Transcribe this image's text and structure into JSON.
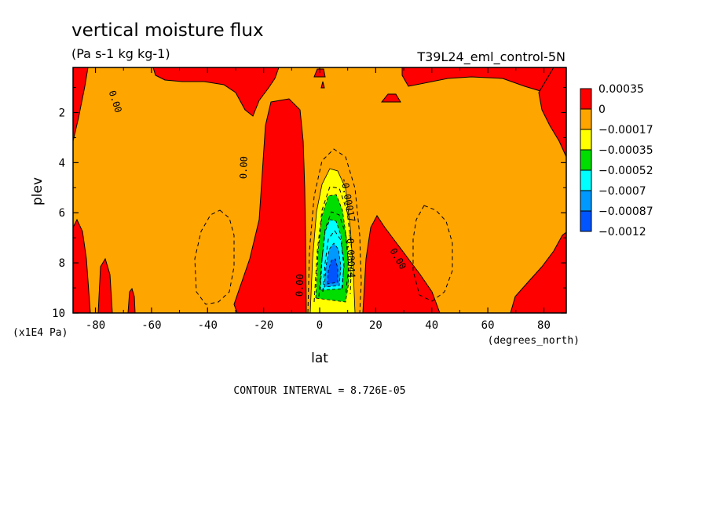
{
  "chart_data": {
    "type": "heatmap",
    "title": "vertical moisture flux",
    "units": "(Pa s-1 kg kg-1)",
    "dataset": "T39L24_eml_control-5N",
    "xlabel": "lat",
    "xunits": "(degrees_north)",
    "ylabel": "plev",
    "yunits": "(x1E4 Pa)",
    "xlim": [
      -88,
      88
    ],
    "ylim": [
      10,
      0.2
    ],
    "xticks": [
      -80,
      -60,
      -40,
      -20,
      0,
      20,
      40,
      60,
      80
    ],
    "xtick_labels": [
      "-80",
      "-60",
      "-40",
      "-20",
      "0",
      "20",
      "40",
      "60",
      "80"
    ],
    "yticks": [
      2,
      4,
      6,
      8,
      10
    ],
    "ytick_labels": [
      "2",
      "4",
      "6",
      "8",
      "10"
    ],
    "contour_interval": "CONTOUR INTERVAL = 8.726E-05",
    "contour_labels": [
      {
        "text": "0.00",
        "lat": -26,
        "plev": 4.2,
        "angle": -88
      },
      {
        "text": "0.00",
        "lat": -74,
        "plev": 1.6,
        "angle": 72
      },
      {
        "text": "0.00",
        "lat": -6,
        "plev": 8.9,
        "angle": -88
      },
      {
        "text": "0.00",
        "lat": 27,
        "plev": 7.9,
        "angle": 60
      },
      {
        "text": "-0.00017",
        "lat": 9,
        "plev": 5.5,
        "angle": 80
      },
      {
        "text": "-0.00044",
        "lat": 10,
        "plev": 7.7,
        "angle": 88
      }
    ],
    "legend": {
      "placement": "right",
      "levels": [
        "0.00035",
        "0",
        "-0.00017",
        "-0.00035",
        "-0.00052",
        "-0.0007",
        "-0.00087",
        "-0.0012"
      ],
      "colors": [
        "#ff0000",
        "#ffa500",
        "#ffff00",
        "#00dd00",
        "#00ffff",
        "#0099ff",
        "#0055ff",
        "#0055ff"
      ]
    },
    "colors": {
      "positive": "#ff0000",
      "background": "#ffa500",
      "c1": "#ffff00",
      "c2": "#00dd00",
      "c3": "#00ffff",
      "c4": "#0099ff",
      "c5": "#0055ff"
    }
  }
}
